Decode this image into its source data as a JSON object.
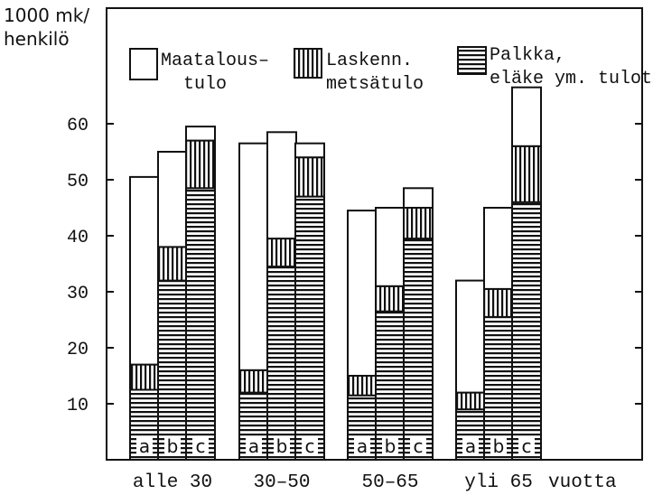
{
  "chart_data": {
    "type": "bar",
    "stacked": true,
    "ylabel_line1": "1000 mk/",
    "ylabel_line2": "henkilö",
    "xlabel_suffix": "vuotta",
    "ylim": [
      0,
      70
    ],
    "yticks": [
      10,
      20,
      30,
      40,
      50,
      60
    ],
    "groups": [
      "alle 30",
      "30–50",
      "50–65",
      "yli 65"
    ],
    "bar_labels": [
      "a",
      "b",
      "c"
    ],
    "series": [
      {
        "name": "Palkka, eläke ym. tulot",
        "legend_lines": [
          "Palkka,",
          "eläke ym. tulot"
        ],
        "pattern": "horizontal"
      },
      {
        "name": "Laskenn. metsätulo",
        "legend_lines": [
          "Laskenn.",
          "metsätulo"
        ],
        "pattern": "vertical"
      },
      {
        "name": "Maatalous- tulo",
        "legend_lines": [
          "Maatalous–",
          "tulo"
        ],
        "pattern": "blank"
      }
    ],
    "values": [
      [
        [
          12.5,
          4.5,
          33.5
        ],
        [
          32,
          6,
          17
        ],
        [
          48.5,
          8.5,
          2.5
        ]
      ],
      [
        [
          12,
          4,
          40.5
        ],
        [
          34.5,
          5,
          19
        ],
        [
          47,
          7,
          2.5
        ]
      ],
      [
        [
          11.5,
          3.5,
          29.5
        ],
        [
          26.5,
          4.5,
          14
        ],
        [
          39.5,
          5.5,
          3.5
        ]
      ],
      [
        [
          9,
          3,
          20
        ],
        [
          25.5,
          5,
          14.5
        ],
        [
          46,
          10,
          10.5
        ]
      ]
    ]
  }
}
